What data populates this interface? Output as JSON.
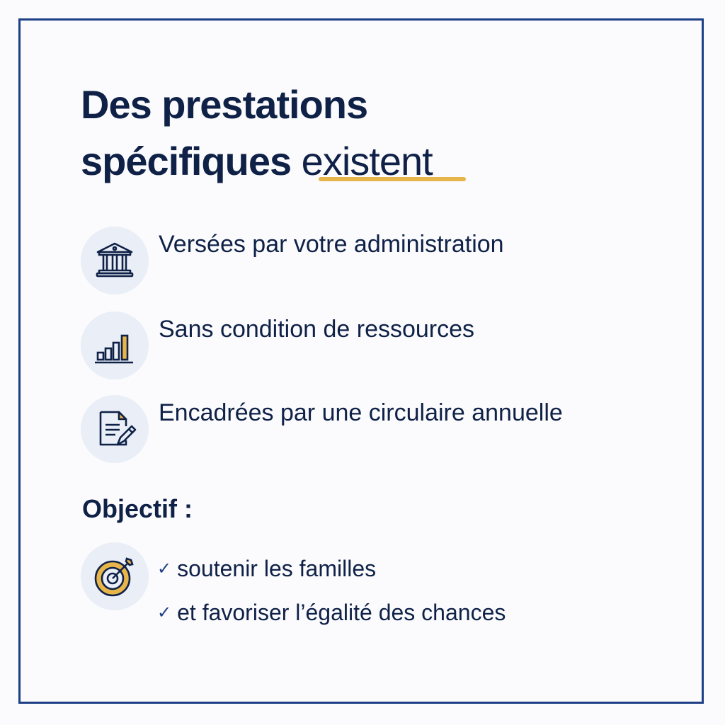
{
  "title": {
    "line1": "Des prestations",
    "line2_main": "spécifiques ",
    "line2_highlight": "existent"
  },
  "items": [
    {
      "icon": "bank-icon",
      "label": "Versées par votre administration"
    },
    {
      "icon": "bar-chart-icon",
      "label": "Sans condition de ressources"
    },
    {
      "icon": "document-pen-icon",
      "label": "Encadrées par une circulaire annuelle"
    }
  ],
  "objective": {
    "heading": "Objectif :",
    "icon": "target-icon",
    "points": [
      "soutenir les familles",
      "et favoriser l’égalité des chances"
    ]
  },
  "colors": {
    "navy": "#0f2147",
    "accent": "#e8b54a",
    "border": "#1d3f86",
    "icon_bg": "#e9eef7"
  }
}
